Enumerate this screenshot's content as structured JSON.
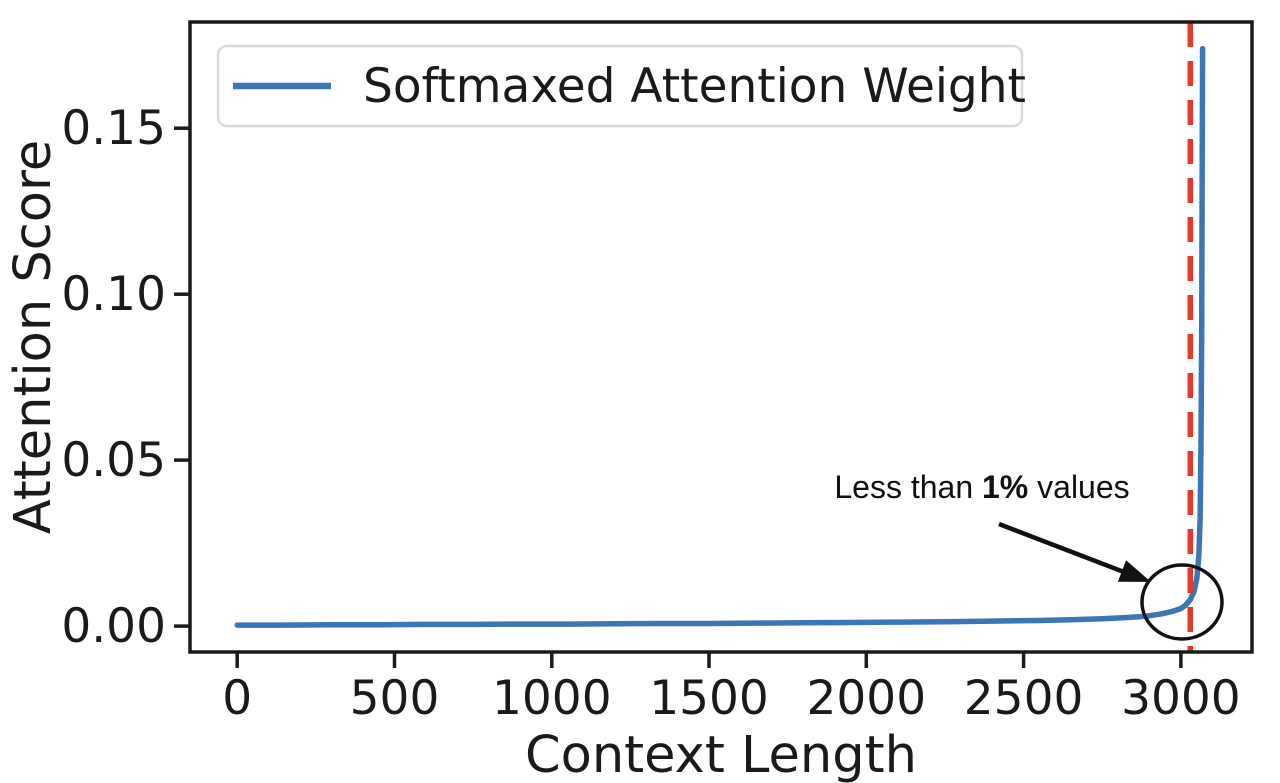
{
  "figure": {
    "background": "#ffffff",
    "axis_color": "#1a1a1a"
  },
  "chart_data": {
    "type": "line",
    "title": "",
    "xlabel": "Context Length",
    "ylabel": "Attention Score",
    "xlim": [
      -150,
      3226
    ],
    "ylim": [
      -0.0078,
      0.182
    ],
    "xticks": [
      0,
      500,
      1000,
      1500,
      2000,
      2500,
      3000
    ],
    "yticks": [
      {
        "value": 0.0,
        "label": "0.00"
      },
      {
        "value": 0.05,
        "label": "0.05"
      },
      {
        "value": 0.1,
        "label": "0.10"
      },
      {
        "value": 0.15,
        "label": "0.15"
      }
    ],
    "grid": false,
    "legend": {
      "position": "upper-left",
      "label": "Softmaxed Attention Weight",
      "border_color": "#d9d9d9"
    },
    "series": [
      {
        "name": "Softmaxed Attention Weight",
        "color": "#3d76b4",
        "points": [
          [
            0,
            0.0003
          ],
          [
            150,
            0.0003
          ],
          [
            300,
            0.0004
          ],
          [
            450,
            0.0004
          ],
          [
            600,
            0.0005
          ],
          [
            750,
            0.0005
          ],
          [
            900,
            0.0006
          ],
          [
            1050,
            0.0006
          ],
          [
            1200,
            0.0007
          ],
          [
            1350,
            0.0008
          ],
          [
            1500,
            0.0008
          ],
          [
            1650,
            0.0009
          ],
          [
            1800,
            0.001
          ],
          [
            1950,
            0.0011
          ],
          [
            2100,
            0.0012
          ],
          [
            2250,
            0.0013
          ],
          [
            2400,
            0.0015
          ],
          [
            2550,
            0.0017
          ],
          [
            2650,
            0.0019
          ],
          [
            2750,
            0.0022
          ],
          [
            2830,
            0.0026
          ],
          [
            2890,
            0.003
          ],
          [
            2940,
            0.0037
          ],
          [
            2975,
            0.0045
          ],
          [
            3000,
            0.0053
          ],
          [
            3015,
            0.0063
          ],
          [
            3030,
            0.008
          ],
          [
            3042,
            0.0105
          ],
          [
            3051,
            0.0145
          ],
          [
            3057,
            0.021
          ],
          [
            3061,
            0.032
          ],
          [
            3064,
            0.055
          ],
          [
            3066,
            0.09
          ],
          [
            3067,
            0.12
          ],
          [
            3068,
            0.148
          ],
          [
            3069,
            0.174
          ]
        ]
      }
    ],
    "vline": {
      "x": 3030,
      "color": "#e6372b",
      "style": "dashed"
    },
    "annotation": {
      "text": "Less than 1% values",
      "prefix": "Less than ",
      "bold": "1%",
      "suffix": " values"
    }
  }
}
